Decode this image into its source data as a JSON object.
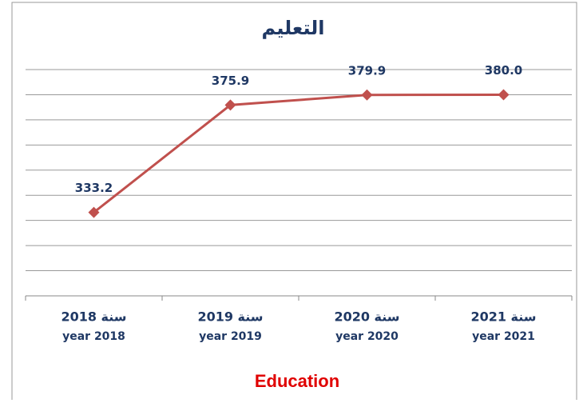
{
  "chart_data": {
    "type": "line",
    "title": "التعليم",
    "caption": "Education",
    "categories": [
      [
        "سنة 2018",
        "year 2018"
      ],
      [
        "سنة 2019",
        "year 2019"
      ],
      [
        "سنة 2020",
        "year 2020"
      ],
      [
        "سنة 2021",
        "year 2021"
      ]
    ],
    "values": [
      333.2,
      375.9,
      379.9,
      380
    ],
    "value_labels": [
      "333.2",
      "375.9",
      "379.9",
      "380.0"
    ],
    "color": "#c0504d",
    "ylim": [
      300,
      390
    ],
    "yticks": [
      300,
      310,
      320,
      330,
      340,
      350,
      360,
      370,
      380,
      390
    ],
    "grid": true
  }
}
